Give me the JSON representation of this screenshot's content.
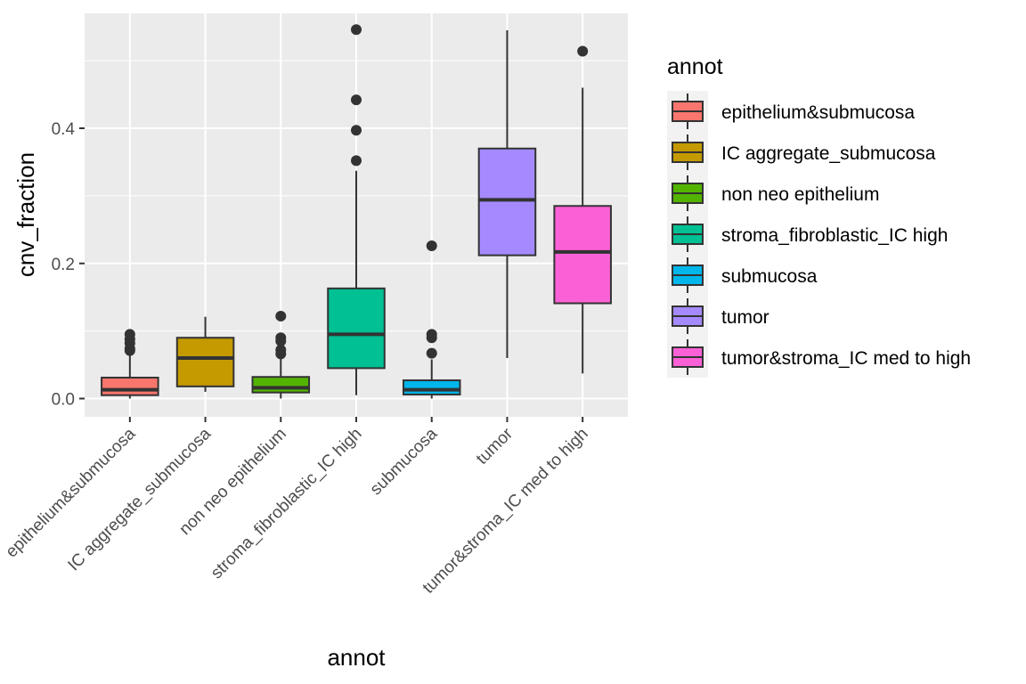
{
  "chart_data": {
    "type": "boxplot",
    "title": "",
    "xlabel": "annot",
    "ylabel": "cnv_fraction",
    "ylim": [
      -0.027,
      0.57
    ],
    "y_ticks": [
      0.0,
      0.2,
      0.4
    ],
    "y_tick_labels": [
      "0.0",
      "0.2",
      "0.4"
    ],
    "grid": true,
    "categories": [
      "epithelium&submucosa",
      "IC aggregate_submucosa",
      "non neo epithelium",
      "stroma_fibroblastic_IC high",
      "submucosa",
      "tumor",
      "tumor&stroma_IC med to high"
    ],
    "boxes": [
      {
        "category": "epithelium&submucosa",
        "whisker_low": 0.0,
        "q1": 0.005,
        "median": 0.013,
        "q3": 0.031,
        "whisker_high": 0.066,
        "outliers": [
          0.071,
          0.074,
          0.082,
          0.088,
          0.095
        ],
        "color": "#F8766D"
      },
      {
        "category": "IC aggregate_submucosa",
        "whisker_low": 0.01,
        "q1": 0.018,
        "median": 0.06,
        "q3": 0.09,
        "whisker_high": 0.121,
        "outliers": [],
        "color": "#C49A00"
      },
      {
        "category": "non neo epithelium",
        "whisker_low": 0.0,
        "q1": 0.009,
        "median": 0.016,
        "q3": 0.032,
        "whisker_high": 0.062,
        "outliers": [
          0.066,
          0.072,
          0.085,
          0.09,
          0.122
        ],
        "color": "#53B400"
      },
      {
        "category": "stroma_fibroblastic_IC high",
        "whisker_low": 0.005,
        "q1": 0.045,
        "median": 0.095,
        "q3": 0.163,
        "whisker_high": 0.337,
        "outliers": [
          0.352,
          0.397,
          0.442,
          0.546
        ],
        "color": "#00C094"
      },
      {
        "category": "submucosa",
        "whisker_low": 0.0,
        "q1": 0.006,
        "median": 0.013,
        "q3": 0.027,
        "whisker_high": 0.058,
        "outliers": [
          0.067,
          0.09,
          0.095,
          0.226
        ],
        "color": "#00B6EB"
      },
      {
        "category": "tumor",
        "whisker_low": 0.06,
        "q1": 0.212,
        "median": 0.294,
        "q3": 0.37,
        "whisker_high": 0.545,
        "outliers": [],
        "color": "#A58AFF"
      },
      {
        "category": "tumor&stroma_IC med to high",
        "whisker_low": 0.037,
        "q1": 0.141,
        "median": 0.217,
        "q3": 0.285,
        "whisker_high": 0.46,
        "outliers": [
          0.514
        ],
        "color": "#FB61D7"
      }
    ],
    "legend": {
      "title": "annot",
      "position": "right",
      "entries": [
        {
          "label": "epithelium&submucosa",
          "color": "#F8766D"
        },
        {
          "label": "IC aggregate_submucosa",
          "color": "#C49A00"
        },
        {
          "label": "non neo epithelium",
          "color": "#53B400"
        },
        {
          "label": "stroma_fibroblastic_IC high",
          "color": "#00C094"
        },
        {
          "label": "submucosa",
          "color": "#00B6EB"
        },
        {
          "label": "tumor",
          "color": "#A58AFF"
        },
        {
          "label": "tumor&stroma_IC med to high",
          "color": "#FB61D7"
        }
      ]
    }
  },
  "theme": {
    "panel_background": "#EBEBEB",
    "grid_color": "#FFFFFF",
    "line_color": "#333333",
    "tick_text_color": "#4D4D4D"
  }
}
